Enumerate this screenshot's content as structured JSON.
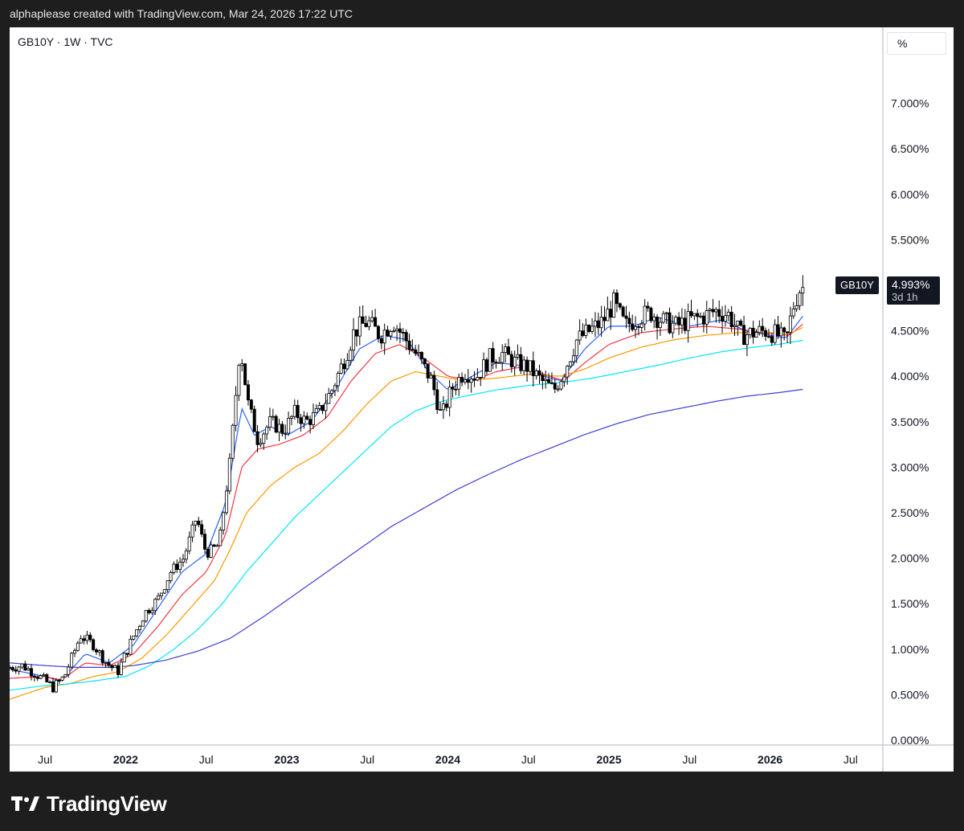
{
  "header": {
    "attribution": "alphaplease created with TradingView.com, Mar 24, 2026 17:22 UTC"
  },
  "chart_header": {
    "symbol_line": "GB10Y · 1W · TVC",
    "scale_unit": "%"
  },
  "last_price": {
    "symbol": "GB10Y",
    "value": "4.993%",
    "countdown": "3d 1h"
  },
  "brand": {
    "name": "TradingView",
    "logo_icon": "tradingview-logo-icon"
  },
  "chart_data": {
    "type": "candlestick",
    "title": "",
    "ylabel": "%",
    "ylim": [
      0,
      7.5
    ],
    "xlim": [
      2021.28,
      2026.7
    ],
    "y_ticks": [
      {
        "v": 7.0,
        "label": "7.000%"
      },
      {
        "v": 6.5,
        "label": "6.500%"
      },
      {
        "v": 6.0,
        "label": "6.000%"
      },
      {
        "v": 5.5,
        "label": "5.500%"
      },
      {
        "v": 5.0,
        "label": "5.000%"
      },
      {
        "v": 4.5,
        "label": "4.500%"
      },
      {
        "v": 4.0,
        "label": "4.000%"
      },
      {
        "v": 3.5,
        "label": "3.500%"
      },
      {
        "v": 3.0,
        "label": "3.000%"
      },
      {
        "v": 2.5,
        "label": "2.500%"
      },
      {
        "v": 2.0,
        "label": "2.000%"
      },
      {
        "v": 1.5,
        "label": "1.500%"
      },
      {
        "v": 1.0,
        "label": "1.000%"
      },
      {
        "v": 0.5,
        "label": "0.500%"
      },
      {
        "v": 0.0,
        "label": "0.000%"
      }
    ],
    "x_ticks": [
      {
        "t": 2021.5,
        "label": "Jul",
        "bold": false
      },
      {
        "t": 2022.0,
        "label": "2022",
        "bold": true
      },
      {
        "t": 2022.5,
        "label": "Jul",
        "bold": false
      },
      {
        "t": 2023.0,
        "label": "2023",
        "bold": true
      },
      {
        "t": 2023.5,
        "label": "Jul",
        "bold": false
      },
      {
        "t": 2024.0,
        "label": "2024",
        "bold": true
      },
      {
        "t": 2024.5,
        "label": "Jul",
        "bold": false
      },
      {
        "t": 2025.0,
        "label": "2025",
        "bold": true
      },
      {
        "t": 2025.5,
        "label": "Jul",
        "bold": false
      },
      {
        "t": 2026.0,
        "label": "2026",
        "bold": true
      },
      {
        "t": 2026.5,
        "label": "Jul",
        "bold": false
      }
    ],
    "price_path": [
      [
        2021.28,
        0.8
      ],
      [
        2021.36,
        0.82
      ],
      [
        2021.45,
        0.72
      ],
      [
        2021.55,
        0.58
      ],
      [
        2021.62,
        0.7
      ],
      [
        2021.72,
        1.15
      ],
      [
        2021.8,
        1.05
      ],
      [
        2021.88,
        0.85
      ],
      [
        2021.95,
        0.75
      ],
      [
        2022.05,
        1.15
      ],
      [
        2022.12,
        1.4
      ],
      [
        2022.2,
        1.55
      ],
      [
        2022.28,
        1.85
      ],
      [
        2022.36,
        2.0
      ],
      [
        2022.44,
        2.45
      ],
      [
        2022.5,
        2.05
      ],
      [
        2022.58,
        2.15
      ],
      [
        2022.65,
        3.1
      ],
      [
        2022.71,
        4.35
      ],
      [
        2022.76,
        3.7
      ],
      [
        2022.82,
        3.3
      ],
      [
        2022.9,
        3.5
      ],
      [
        2022.98,
        3.4
      ],
      [
        2023.05,
        3.6
      ],
      [
        2023.12,
        3.5
      ],
      [
        2023.2,
        3.6
      ],
      [
        2023.28,
        3.85
      ],
      [
        2023.36,
        4.2
      ],
      [
        2023.42,
        4.5
      ],
      [
        2023.5,
        4.6
      ],
      [
        2023.58,
        4.45
      ],
      [
        2023.66,
        4.6
      ],
      [
        2023.74,
        4.4
      ],
      [
        2023.82,
        4.2
      ],
      [
        2023.9,
        3.95
      ],
      [
        2023.96,
        3.55
      ],
      [
        2024.02,
        3.85
      ],
      [
        2024.1,
        4.05
      ],
      [
        2024.18,
        4.0
      ],
      [
        2024.26,
        4.2
      ],
      [
        2024.34,
        4.25
      ],
      [
        2024.42,
        4.15
      ],
      [
        2024.5,
        4.1
      ],
      [
        2024.58,
        3.95
      ],
      [
        2024.66,
        3.85
      ],
      [
        2024.72,
        4.05
      ],
      [
        2024.8,
        4.4
      ],
      [
        2024.88,
        4.5
      ],
      [
        2024.96,
        4.6
      ],
      [
        2025.03,
        4.8
      ],
      [
        2025.1,
        4.55
      ],
      [
        2025.18,
        4.65
      ],
      [
        2025.26,
        4.7
      ],
      [
        2025.34,
        4.6
      ],
      [
        2025.42,
        4.55
      ],
      [
        2025.5,
        4.62
      ],
      [
        2025.58,
        4.65
      ],
      [
        2025.66,
        4.72
      ],
      [
        2025.74,
        4.68
      ],
      [
        2025.82,
        4.45
      ],
      [
        2025.9,
        4.48
      ],
      [
        2025.98,
        4.5
      ],
      [
        2026.05,
        4.45
      ],
      [
        2026.1,
        4.38
      ],
      [
        2026.14,
        4.75
      ],
      [
        2026.18,
        4.95
      ],
      [
        2026.22,
        4.99
      ]
    ],
    "series": [
      {
        "color": "#2962ff",
        "points": [
          [
            2021.28,
            0.78
          ],
          [
            2021.5,
            0.7
          ],
          [
            2021.6,
            0.65
          ],
          [
            2021.75,
            0.95
          ],
          [
            2021.9,
            0.85
          ],
          [
            2022.05,
            1.05
          ],
          [
            2022.2,
            1.45
          ],
          [
            2022.35,
            1.85
          ],
          [
            2022.5,
            2.05
          ],
          [
            2022.62,
            2.6
          ],
          [
            2022.72,
            3.65
          ],
          [
            2022.8,
            3.35
          ],
          [
            2022.9,
            3.45
          ],
          [
            2023.0,
            3.35
          ],
          [
            2023.15,
            3.5
          ],
          [
            2023.3,
            3.85
          ],
          [
            2023.45,
            4.3
          ],
          [
            2023.6,
            4.45
          ],
          [
            2023.75,
            4.4
          ],
          [
            2023.88,
            4.05
          ],
          [
            2024.0,
            3.85
          ],
          [
            2024.15,
            4.0
          ],
          [
            2024.3,
            4.15
          ],
          [
            2024.45,
            4.12
          ],
          [
            2024.6,
            4.0
          ],
          [
            2024.7,
            3.95
          ],
          [
            2024.85,
            4.3
          ],
          [
            2025.0,
            4.55
          ],
          [
            2025.15,
            4.55
          ],
          [
            2025.3,
            4.65
          ],
          [
            2025.5,
            4.55
          ],
          [
            2025.7,
            4.62
          ],
          [
            2025.85,
            4.5
          ],
          [
            2026.0,
            4.45
          ],
          [
            2026.1,
            4.42
          ],
          [
            2026.22,
            4.7
          ]
        ]
      },
      {
        "color": "#f23645",
        "points": [
          [
            2021.28,
            0.68
          ],
          [
            2021.5,
            0.7
          ],
          [
            2021.6,
            0.66
          ],
          [
            2021.75,
            0.85
          ],
          [
            2021.9,
            0.82
          ],
          [
            2022.05,
            0.95
          ],
          [
            2022.2,
            1.25
          ],
          [
            2022.35,
            1.6
          ],
          [
            2022.5,
            1.85
          ],
          [
            2022.62,
            2.25
          ],
          [
            2022.72,
            3.0
          ],
          [
            2022.82,
            3.2
          ],
          [
            2022.95,
            3.25
          ],
          [
            2023.1,
            3.35
          ],
          [
            2023.25,
            3.55
          ],
          [
            2023.4,
            3.95
          ],
          [
            2023.55,
            4.25
          ],
          [
            2023.7,
            4.35
          ],
          [
            2023.85,
            4.2
          ],
          [
            2024.0,
            4.0
          ],
          [
            2024.15,
            3.95
          ],
          [
            2024.3,
            4.05
          ],
          [
            2024.45,
            4.1
          ],
          [
            2024.6,
            4.02
          ],
          [
            2024.72,
            3.95
          ],
          [
            2024.85,
            4.15
          ],
          [
            2025.0,
            4.35
          ],
          [
            2025.2,
            4.48
          ],
          [
            2025.4,
            4.52
          ],
          [
            2025.6,
            4.55
          ],
          [
            2025.8,
            4.52
          ],
          [
            2026.0,
            4.47
          ],
          [
            2026.12,
            4.45
          ],
          [
            2026.22,
            4.6
          ]
        ]
      },
      {
        "color": "#ff9800",
        "points": [
          [
            2021.28,
            0.45
          ],
          [
            2021.5,
            0.58
          ],
          [
            2021.65,
            0.62
          ],
          [
            2021.8,
            0.7
          ],
          [
            2021.95,
            0.75
          ],
          [
            2022.1,
            0.9
          ],
          [
            2022.25,
            1.15
          ],
          [
            2022.4,
            1.45
          ],
          [
            2022.55,
            1.75
          ],
          [
            2022.65,
            2.1
          ],
          [
            2022.75,
            2.5
          ],
          [
            2022.9,
            2.8
          ],
          [
            2023.05,
            3.0
          ],
          [
            2023.2,
            3.15
          ],
          [
            2023.35,
            3.4
          ],
          [
            2023.5,
            3.7
          ],
          [
            2023.65,
            3.95
          ],
          [
            2023.8,
            4.05
          ],
          [
            2023.95,
            4.0
          ],
          [
            2024.1,
            3.95
          ],
          [
            2024.3,
            3.98
          ],
          [
            2024.5,
            4.02
          ],
          [
            2024.7,
            4.0
          ],
          [
            2024.85,
            4.08
          ],
          [
            2025.0,
            4.2
          ],
          [
            2025.2,
            4.32
          ],
          [
            2025.4,
            4.4
          ],
          [
            2025.6,
            4.45
          ],
          [
            2025.8,
            4.48
          ],
          [
            2026.0,
            4.48
          ],
          [
            2026.12,
            4.47
          ],
          [
            2026.22,
            4.55
          ]
        ]
      },
      {
        "color": "#00e5ff",
        "points": [
          [
            2021.28,
            0.55
          ],
          [
            2021.5,
            0.6
          ],
          [
            2021.65,
            0.62
          ],
          [
            2021.8,
            0.65
          ],
          [
            2022.0,
            0.7
          ],
          [
            2022.15,
            0.82
          ],
          [
            2022.3,
            1.0
          ],
          [
            2022.45,
            1.22
          ],
          [
            2022.6,
            1.5
          ],
          [
            2022.75,
            1.85
          ],
          [
            2022.9,
            2.15
          ],
          [
            2023.05,
            2.45
          ],
          [
            2023.2,
            2.7
          ],
          [
            2023.35,
            2.95
          ],
          [
            2023.5,
            3.2
          ],
          [
            2023.65,
            3.45
          ],
          [
            2023.8,
            3.62
          ],
          [
            2023.95,
            3.72
          ],
          [
            2024.1,
            3.78
          ],
          [
            2024.3,
            3.85
          ],
          [
            2024.5,
            3.9
          ],
          [
            2024.7,
            3.93
          ],
          [
            2024.9,
            3.98
          ],
          [
            2025.1,
            4.05
          ],
          [
            2025.3,
            4.12
          ],
          [
            2025.5,
            4.2
          ],
          [
            2025.7,
            4.27
          ],
          [
            2025.9,
            4.32
          ],
          [
            2026.05,
            4.35
          ],
          [
            2026.22,
            4.4
          ]
        ]
      },
      {
        "color": "#3f3fd0",
        "points": [
          [
            2021.28,
            0.85
          ],
          [
            2021.5,
            0.82
          ],
          [
            2021.7,
            0.8
          ],
          [
            2021.9,
            0.8
          ],
          [
            2022.05,
            0.82
          ],
          [
            2022.25,
            0.88
          ],
          [
            2022.45,
            0.98
          ],
          [
            2022.65,
            1.12
          ],
          [
            2022.85,
            1.35
          ],
          [
            2023.05,
            1.6
          ],
          [
            2023.25,
            1.85
          ],
          [
            2023.45,
            2.1
          ],
          [
            2023.65,
            2.35
          ],
          [
            2023.85,
            2.55
          ],
          [
            2024.05,
            2.75
          ],
          [
            2024.25,
            2.92
          ],
          [
            2024.45,
            3.08
          ],
          [
            2024.65,
            3.22
          ],
          [
            2024.85,
            3.36
          ],
          [
            2025.05,
            3.48
          ],
          [
            2025.25,
            3.58
          ],
          [
            2025.45,
            3.65
          ],
          [
            2025.65,
            3.72
          ],
          [
            2025.85,
            3.78
          ],
          [
            2026.05,
            3.82
          ],
          [
            2026.22,
            3.86
          ]
        ]
      }
    ]
  }
}
